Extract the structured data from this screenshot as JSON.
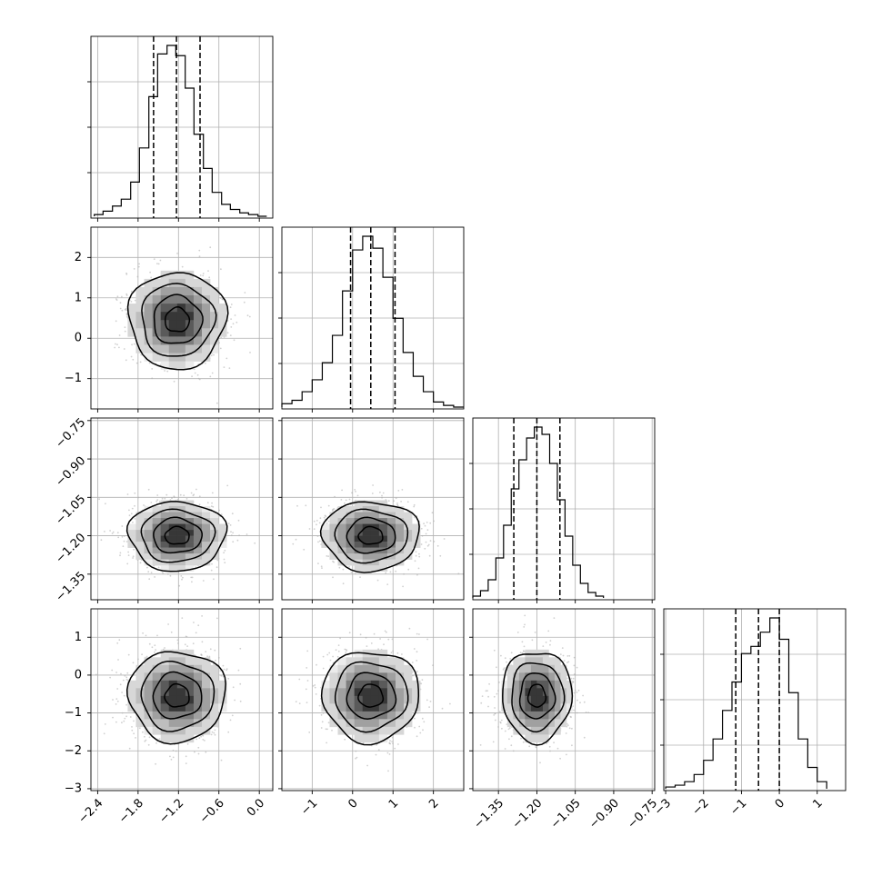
{
  "chart_data": {
    "type": "corner",
    "parameters": [
      {
        "index": 0,
        "label": "",
        "range": [
          -2.5,
          0.2
        ],
        "ticks": [
          -2.4,
          -1.8,
          -1.2,
          -0.6,
          0.0
        ],
        "tick_labels": [
          "−2.4",
          "−1.8",
          "−1.2",
          "−0.6",
          "0.0"
        ],
        "quantiles": [
          -1.57,
          -1.23,
          -0.88
        ],
        "hist_bins": [
          -2.45,
          -2.32,
          -2.18,
          -2.05,
          -1.91,
          -1.78,
          -1.64,
          -1.51,
          -1.37,
          -1.24,
          -1.1,
          -0.97,
          -0.83,
          -0.7,
          -0.56,
          -0.43,
          -0.29,
          -0.16,
          -0.02,
          0.11
        ],
        "hist_values": [
          1,
          3,
          6,
          10,
          20,
          40,
          70,
          95,
          100,
          94,
          75,
          48,
          28,
          14,
          7,
          4,
          2,
          1,
          0
        ]
      },
      {
        "index": 1,
        "label": "",
        "range": [
          -1.75,
          2.75
        ],
        "ticks": [
          -1,
          0,
          1,
          2
        ],
        "tick_labels": [
          "−1",
          "0",
          "1",
          "2"
        ],
        "quantiles": [
          -0.05,
          0.45,
          1.05
        ],
        "hist_bins": [
          -1.75,
          -1.5,
          -1.25,
          -1.0,
          -0.75,
          -0.5,
          -0.25,
          0.0,
          0.25,
          0.5,
          0.75,
          1.0,
          1.25,
          1.5,
          1.75,
          2.0,
          2.25,
          2.5,
          2.75
        ],
        "hist_values": [
          2,
          4,
          9,
          16,
          26,
          42,
          68,
          92,
          100,
          93,
          76,
          52,
          32,
          18,
          9,
          3,
          1,
          0
        ]
      },
      {
        "index": 2,
        "label": "",
        "range": [
          -1.45,
          -0.74
        ],
        "ticks": [
          -1.35,
          -1.2,
          -1.05,
          -0.9,
          -0.75
        ],
        "tick_labels": [
          "−1.35",
          "−1.20",
          "−1.05",
          "−0.90",
          "−0.75"
        ],
        "quantiles": [
          -1.29,
          -1.2,
          -1.11
        ],
        "hist_bins": [
          -1.45,
          -1.42,
          -1.39,
          -1.36,
          -1.33,
          -1.3,
          -1.27,
          -1.24,
          -1.21,
          -1.18,
          -1.15,
          -1.12,
          -1.09,
          -1.06,
          -1.03,
          -1.0,
          -0.97,
          -0.94
        ],
        "hist_values": [
          1,
          4,
          10,
          22,
          40,
          60,
          76,
          88,
          94,
          90,
          74,
          54,
          34,
          18,
          8,
          3,
          1
        ]
      },
      {
        "index": 3,
        "label": "",
        "range": [
          -3.05,
          1.75
        ],
        "ticks": [
          -3,
          -2,
          -1,
          0,
          1
        ],
        "tick_labels": [
          "−3",
          "−2",
          "−1",
          "0",
          "1"
        ],
        "quantiles": [
          -1.15,
          -0.55,
          0.0
        ],
        "hist_bins": [
          -3.0,
          -2.75,
          -2.5,
          -2.25,
          -2.0,
          -1.75,
          -1.5,
          -1.25,
          -1.0,
          -0.75,
          -0.5,
          -0.25,
          0.0,
          0.25,
          0.5,
          0.75,
          1.0,
          1.25
        ],
        "hist_values": [
          1,
          2,
          4,
          8,
          16,
          28,
          44,
          60,
          76,
          80,
          88,
          96,
          84,
          54,
          28,
          12,
          4
        ]
      }
    ],
    "row_tick_labels": {
      "1": {
        "ticks": [
          -1,
          0,
          1,
          2
        ],
        "labels": [
          "−1",
          "0",
          "1",
          "2"
        ]
      },
      "2": {
        "ticks": [
          -1.35,
          -1.2,
          -1.05,
          -0.9,
          -0.75
        ],
        "labels": [
          "−1.35",
          "−1.20",
          "−1.05",
          "−0.90",
          "−0.75"
        ]
      },
      "3": {
        "ticks": [
          -3,
          -2,
          -1,
          0,
          1
        ],
        "labels": [
          "−3",
          "−2",
          "−1",
          "0",
          "1"
        ]
      }
    },
    "joint_centers": [
      {
        "pair": [
          1,
          0
        ],
        "center": [
          -1.22,
          0.45
        ],
        "sigma": [
          0.36,
          0.6
        ]
      },
      {
        "pair": [
          2,
          0
        ],
        "center": [
          -1.22,
          -1.2
        ],
        "sigma": [
          0.36,
          0.068
        ]
      },
      {
        "pair": [
          2,
          1
        ],
        "center": [
          0.45,
          -1.2
        ],
        "sigma": [
          0.6,
          0.068
        ]
      },
      {
        "pair": [
          3,
          0
        ],
        "center": [
          -1.22,
          -0.55
        ],
        "sigma": [
          0.36,
          0.6
        ]
      },
      {
        "pair": [
          3,
          1
        ],
        "center": [
          0.45,
          -0.55
        ],
        "sigma": [
          0.6,
          0.6
        ]
      },
      {
        "pair": [
          3,
          2
        ],
        "center": [
          -1.2,
          -0.55
        ],
        "sigma": [
          0.068,
          0.6
        ]
      }
    ],
    "contour_levels_sigma": [
      0.5,
      1.0,
      1.5,
      2.0
    ],
    "grid": true,
    "colors": {
      "hist": "#000000",
      "scatter": "#b0b0b0",
      "contour": "#000000",
      "grid": "#b0b0b0"
    }
  }
}
